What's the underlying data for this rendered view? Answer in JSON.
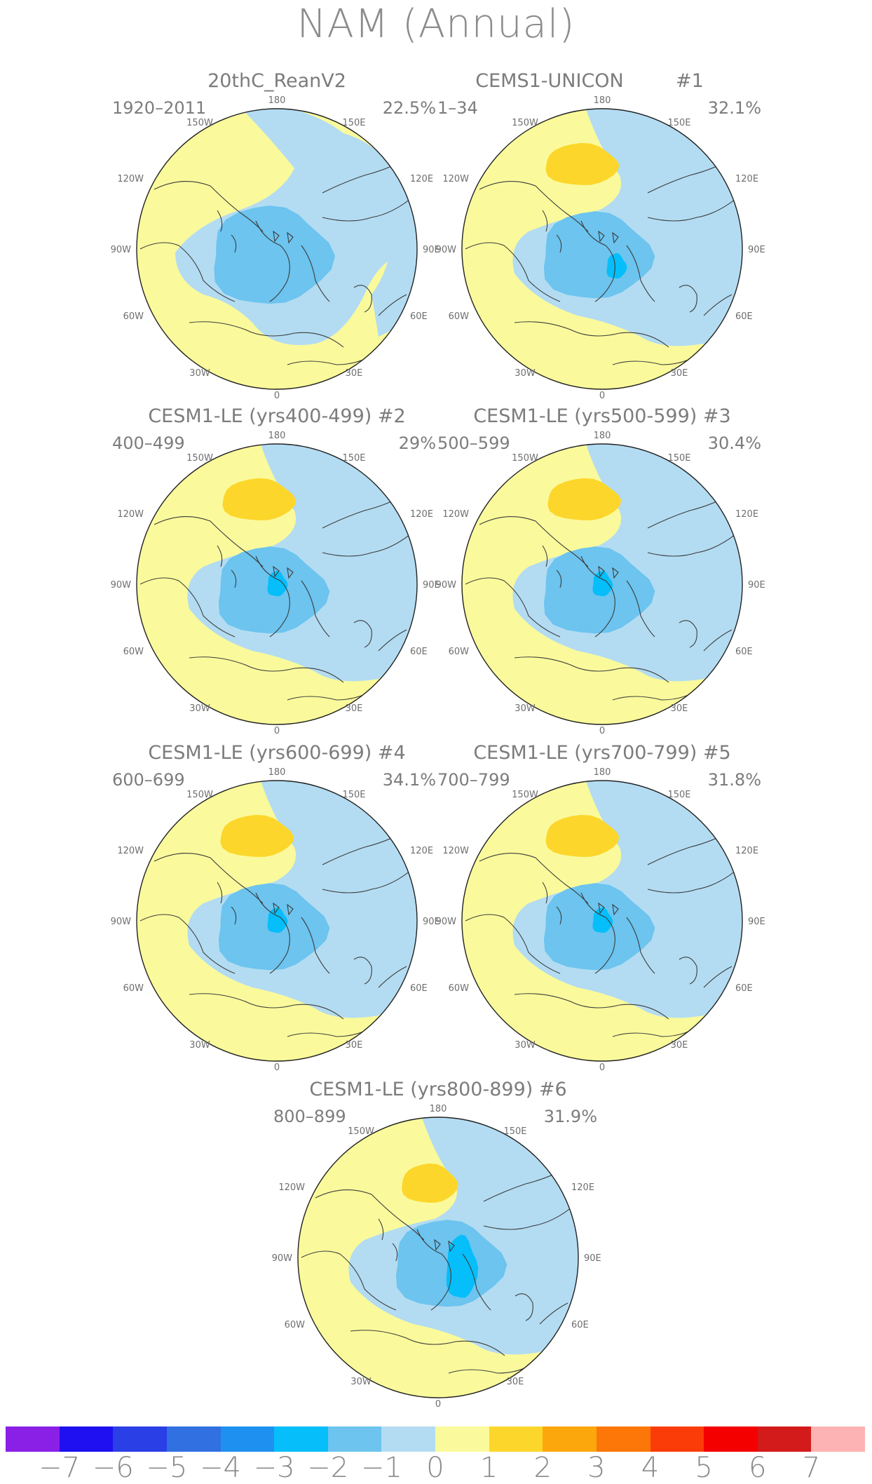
{
  "title": "NAM (Annual)",
  "panels": [
    {
      "title": "20thC_ReanV2",
      "tag": "",
      "range": "1920–2011",
      "percent": "22.5%",
      "variant": 0
    },
    {
      "title": "CEMS1-UNICON",
      "tag": "#1",
      "range": "1–34",
      "percent": "32.1%",
      "variant": 1
    },
    {
      "title": "CESM1-LE (yrs400-499) #2",
      "tag": "",
      "range": "400–499",
      "percent": "29%",
      "variant": 2
    },
    {
      "title": "CESM1-LE (yrs500-599) #3",
      "tag": "",
      "range": "500–599",
      "percent": "30.4%",
      "variant": 2
    },
    {
      "title": "CESM1-LE (yrs600-699) #4",
      "tag": "",
      "range": "600–699",
      "percent": "34.1%",
      "variant": 3
    },
    {
      "title": "CESM1-LE (yrs700-799) #5",
      "tag": "",
      "range": "700–799",
      "percent": "31.8%",
      "variant": 3
    },
    {
      "title": "CESM1-LE (yrs800-899) #6",
      "tag": "",
      "range": "800–899",
      "percent": "31.9%",
      "variant": 4
    }
  ],
  "longitude_labels": {
    "top": "180",
    "top_left": "150W",
    "top_right": "150E",
    "upper_left": "120W",
    "upper_right": "120E",
    "left": "90W",
    "right": "90E",
    "lower_left": "60W",
    "lower_right": "60E",
    "bottom_left": "30W",
    "bottom_right": "30E",
    "bottom": "0"
  },
  "colorbar": {
    "colors": [
      "#8a1fe6",
      "#1e10f0",
      "#2a3fe6",
      "#3070e0",
      "#1e90f0",
      "#05befa",
      "#6cc4ef",
      "#b3dcf2",
      "#fafa9c",
      "#fdd62b",
      "#fca70c",
      "#fc7708",
      "#fc3c08",
      "#f40000",
      "#d41b1b",
      "#fdb3b3"
    ],
    "labels": [
      "−7",
      "−6",
      "−5",
      "−4",
      "−3",
      "−2",
      "−1",
      "0",
      "1",
      "2",
      "3",
      "4",
      "5",
      "6",
      "7"
    ]
  }
}
